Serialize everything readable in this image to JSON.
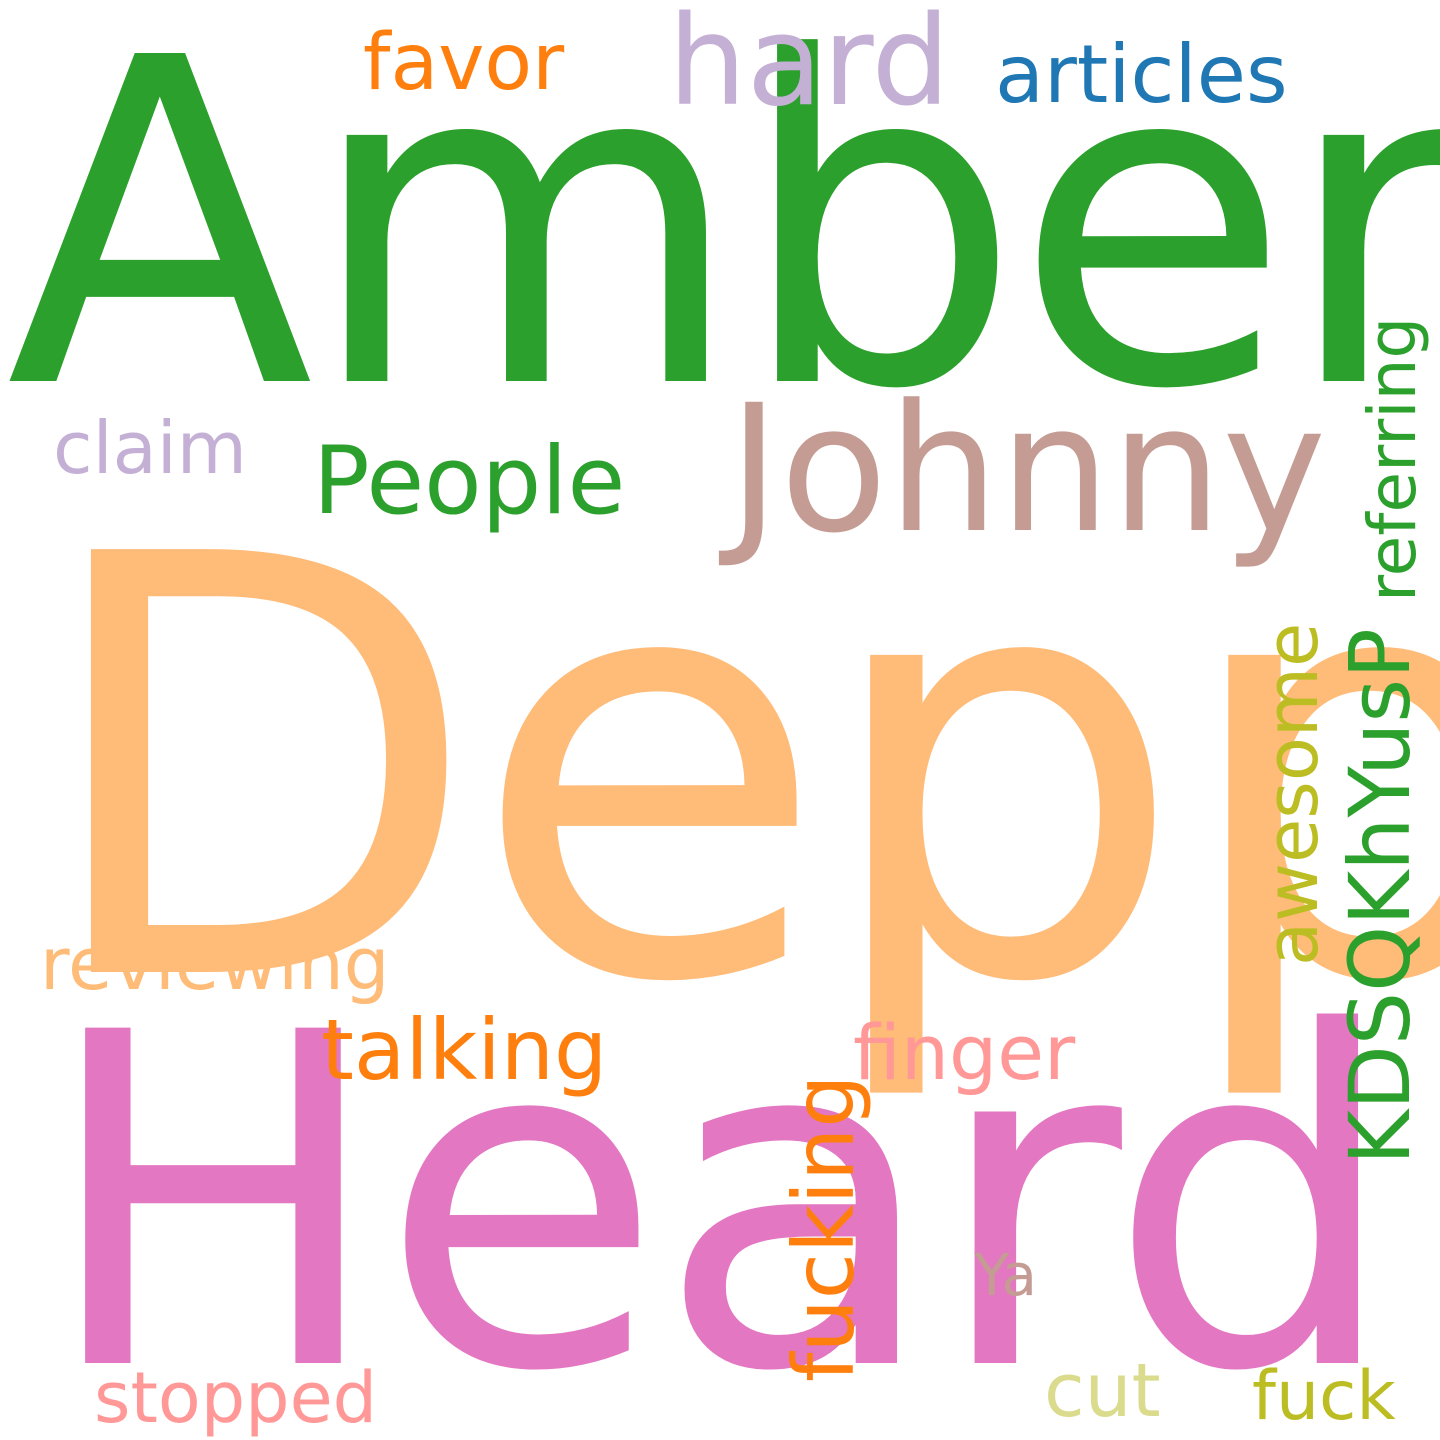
{
  "words": [
    {
      "text": "Amber",
      "color": "#2ca02c",
      "orientation": "horizontal"
    },
    {
      "text": "Depp",
      "color": "#ffbb78",
      "orientation": "horizontal"
    },
    {
      "text": "Heard",
      "color": "#e377c2",
      "orientation": "horizontal"
    },
    {
      "text": "Johnny",
      "color": "#c49c94",
      "orientation": "horizontal"
    },
    {
      "text": "People",
      "color": "#2ca02c",
      "orientation": "horizontal"
    },
    {
      "text": "hard",
      "color": "#c5b0d5",
      "orientation": "horizontal"
    },
    {
      "text": "favor",
      "color": "#ff7f0e",
      "orientation": "horizontal"
    },
    {
      "text": "articles",
      "color": "#1f77b4",
      "orientation": "horizontal"
    },
    {
      "text": "claim",
      "color": "#c5b0d5",
      "orientation": "horizontal"
    },
    {
      "text": "referring",
      "color": "#2ca02c",
      "orientation": "vertical"
    },
    {
      "text": "awesome",
      "color": "#bcbd22",
      "orientation": "vertical"
    },
    {
      "text": "KDSQKhYusP",
      "color": "#2ca02c",
      "orientation": "vertical"
    },
    {
      "text": "reviewing",
      "color": "#ffbb78",
      "orientation": "horizontal"
    },
    {
      "text": "talking",
      "color": "#ff7f0e",
      "orientation": "horizontal"
    },
    {
      "text": "finger",
      "color": "#ff9896",
      "orientation": "horizontal"
    },
    {
      "text": "fucking",
      "color": "#ff7f0e",
      "orientation": "vertical"
    },
    {
      "text": "Ya",
      "color": "#c49c94",
      "orientation": "horizontal"
    },
    {
      "text": "stopped",
      "color": "#ff9896",
      "orientation": "horizontal"
    },
    {
      "text": "cut",
      "color": "#dbdb8d",
      "orientation": "horizontal"
    },
    {
      "text": "fuck",
      "color": "#bcbd22",
      "orientation": "horizontal"
    }
  ]
}
